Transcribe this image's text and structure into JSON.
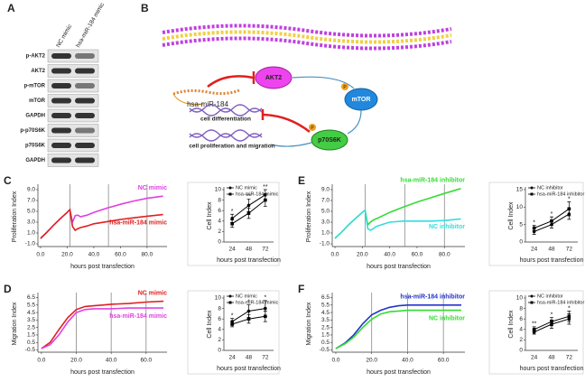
{
  "panel_a": {
    "label": "A",
    "columns": [
      "NC mimic",
      "hsa-miR-184 mimic"
    ],
    "rows": [
      "p-AKT2",
      "AKT2",
      "p-mTOR",
      "mTOR",
      "GAPDH",
      "p-p70S6K",
      "p70S6K",
      "GAPDH"
    ]
  },
  "panel_b": {
    "label": "B",
    "akt": "AKT2",
    "mirna": "hsa-miR-184",
    "mtor": "mTOR",
    "phospho": "P",
    "s6k": "p70S6K",
    "outcome_1": "cell differentiation",
    "outcome_2": "cell proliferation and migration"
  },
  "chart_data": [
    {
      "type": "line",
      "label": "C",
      "ylabel": "Proliferation Index",
      "xlabel": "hours post transfection",
      "x": [
        0,
        5,
        10,
        15,
        20,
        22,
        24,
        26,
        28,
        30,
        35,
        40,
        50,
        60,
        70,
        80,
        92
      ],
      "series": [
        {
          "name": "NC mimic",
          "color": "#e040e0",
          "values": [
            0,
            1.2,
            2.5,
            3.7,
            4.8,
            5.3,
            3.0,
            4.2,
            4.3,
            4.0,
            4.3,
            4.8,
            5.6,
            6.3,
            6.9,
            7.4,
            7.8
          ]
        },
        {
          "name": "hsa-miR-184 mimic",
          "color": "#e02020",
          "values": [
            0,
            1.2,
            2.5,
            3.7,
            4.8,
            5.3,
            2.2,
            1.5,
            1.8,
            2.0,
            2.3,
            2.7,
            3.1,
            3.5,
            3.8,
            4.1,
            4.4
          ]
        }
      ],
      "vlines": [
        22,
        51,
        80
      ],
      "xlim": [
        -2,
        95
      ],
      "ylim": [
        -1.5,
        9.5
      ],
      "xticks": [
        {
          "value": 0,
          "label": "0.0"
        },
        {
          "value": 20,
          "label": "20.0"
        },
        {
          "value": 40,
          "label": "40.0"
        },
        {
          "value": 60,
          "label": "60.0"
        },
        {
          "value": 80,
          "label": "80.0"
        }
      ],
      "yticks": [
        {
          "value": -1,
          "label": "-1.0"
        },
        {
          "value": 1,
          "label": "1.0"
        },
        {
          "value": 3,
          "label": "3.0"
        },
        {
          "value": 5,
          "label": "5.0"
        },
        {
          "value": 7,
          "label": "7.0"
        },
        {
          "value": 9,
          "label": "9.0"
        }
      ]
    },
    {
      "type": "errorbar",
      "ylabel": "Cell Index",
      "xlabel": "hours post transfection",
      "categories": [
        "24",
        "48",
        "72"
      ],
      "series": [
        {
          "name": "NC mimic",
          "color": "#000000",
          "values": [
            4.5,
            7,
            9
          ],
          "errors": [
            0.8,
            1.2,
            1
          ]
        },
        {
          "name": "hsa-miR-184 mimic",
          "color": "#000000",
          "values": [
            3.5,
            5.5,
            8
          ],
          "errors": [
            0.7,
            1,
            1.2
          ]
        }
      ],
      "significance": [
        "*",
        "**",
        "**"
      ],
      "ylim": [
        0,
        10
      ],
      "yticks": [
        0,
        2,
        4,
        6,
        8,
        10
      ]
    },
    {
      "type": "line",
      "label": "E",
      "ylabel": "Proliferation Index",
      "xlabel": "hours post transfection",
      "x": [
        0,
        5,
        10,
        15,
        20,
        22,
        24,
        26,
        28,
        30,
        35,
        40,
        50,
        60,
        70,
        80,
        92
      ],
      "series": [
        {
          "name": "hsa-miR-184 inhibitor",
          "color": "#33dd33",
          "values": [
            0,
            1.2,
            2.5,
            3.7,
            4.8,
            5.2,
            2.5,
            3.0,
            3.4,
            3.6,
            4.2,
            4.8,
            5.8,
            6.7,
            7.5,
            8.3,
            9.2
          ]
        },
        {
          "name": "NC inhibitor",
          "color": "#33dddd",
          "values": [
            0,
            1.2,
            2.5,
            3.7,
            4.8,
            5.2,
            1.8,
            1.5,
            1.8,
            2.2,
            2.6,
            3.0,
            3.2,
            3.2,
            3.2,
            3.3,
            3.6
          ]
        }
      ],
      "vlines": [
        22,
        51,
        80
      ],
      "xlim": [
        -2,
        95
      ],
      "ylim": [
        -1.5,
        9.5
      ],
      "xticks": [
        {
          "value": 0,
          "label": "0.0"
        },
        {
          "value": 20,
          "label": "20.0"
        },
        {
          "value": 40,
          "label": "40.0"
        },
        {
          "value": 60,
          "label": "60.0"
        },
        {
          "value": 80,
          "label": "80.0"
        }
      ],
      "yticks": [
        {
          "value": -1,
          "label": "-1.0"
        },
        {
          "value": 1,
          "label": "1.0"
        },
        {
          "value": 3,
          "label": "3.0"
        },
        {
          "value": 5,
          "label": "5.0"
        },
        {
          "value": 7,
          "label": "7.0"
        },
        {
          "value": 9,
          "label": "9.0"
        }
      ]
    },
    {
      "type": "errorbar",
      "ylabel": "Cell Index",
      "xlabel": "hours post transfection",
      "categories": [
        "24",
        "48",
        "72"
      ],
      "series": [
        {
          "name": "NC inhibitor",
          "color": "#000000",
          "values": [
            3,
            5,
            8
          ],
          "errors": [
            0.8,
            1,
            1.5
          ]
        },
        {
          "name": "hsa-miR-184 inhibitor",
          "color": "#000000",
          "values": [
            4,
            6,
            9.5
          ],
          "errors": [
            0.8,
            1.2,
            2
          ]
        }
      ],
      "significance": [
        "*",
        "*",
        "*"
      ],
      "ylim": [
        0,
        15
      ],
      "yticks": [
        0,
        5,
        10,
        15
      ]
    },
    {
      "type": "line",
      "label": "D",
      "ylabel": "Migration Index",
      "xlabel": "hours post transfection",
      "x": [
        0,
        5,
        10,
        15,
        20,
        25,
        30,
        35,
        40,
        50,
        60,
        70
      ],
      "series": [
        {
          "name": "NC mimic",
          "color": "#e02020",
          "values": [
            -0.3,
            0.5,
            2.2,
            3.8,
            4.9,
            5.3,
            5.4,
            5.5,
            5.6,
            5.7,
            5.9,
            6.0
          ]
        },
        {
          "name": "hsa-miR-184 mimic",
          "color": "#e040e0",
          "values": [
            -0.3,
            0.2,
            1.5,
            3.2,
            4.5,
            4.9,
            5.0,
            5.0,
            5.0,
            5.1,
            5.1,
            5.1
          ]
        }
      ],
      "vlines": [
        20,
        40,
        60
      ],
      "xlim": [
        -2,
        72
      ],
      "ylim": [
        -0.8,
        6.8
      ],
      "xticks": [
        {
          "value": 0,
          "label": "0.0"
        },
        {
          "value": 20,
          "label": "20.0"
        },
        {
          "value": 40,
          "label": "40.0"
        },
        {
          "value": 60,
          "label": "60.0"
        }
      ],
      "yticks": [
        {
          "value": -0.5,
          "label": "-0.5"
        },
        {
          "value": 0.5,
          "label": "0.5"
        },
        {
          "value": 1.5,
          "label": "1.5"
        },
        {
          "value": 2.5,
          "label": "2.5"
        },
        {
          "value": 3.5,
          "label": "3.5"
        },
        {
          "value": 4.5,
          "label": "4.5"
        },
        {
          "value": 5.5,
          "label": "5.5"
        },
        {
          "value": 6.5,
          "label": "6.5"
        }
      ]
    },
    {
      "type": "errorbar",
      "ylabel": "Cell Index",
      "xlabel": "hours post transfection",
      "categories": [
        "24",
        "48",
        "72"
      ],
      "series": [
        {
          "name": "NC mimic",
          "color": "#000000",
          "values": [
            5.5,
            7.5,
            8
          ],
          "errors": [
            0.6,
            1.2,
            1.5
          ]
        },
        {
          "name": "hsa-miR-184 mimic",
          "color": "#000000",
          "values": [
            5,
            6,
            6.5
          ],
          "errors": [
            0.5,
            0.8,
            1
          ]
        }
      ],
      "significance": [
        "*",
        "*",
        "*"
      ],
      "ylim": [
        0,
        10
      ],
      "yticks": [
        0,
        2,
        4,
        6,
        8,
        10
      ]
    },
    {
      "type": "line",
      "label": "F",
      "ylabel": "Migration Index",
      "xlabel": "hours post transfection",
      "x": [
        0,
        5,
        10,
        15,
        20,
        25,
        30,
        35,
        40,
        50,
        60,
        70
      ],
      "series": [
        {
          "name": "hsa-miR-184 inhibitor",
          "color": "#2233cc",
          "values": [
            -0.3,
            0.4,
            1.5,
            3.0,
            4.2,
            4.8,
            5.2,
            5.4,
            5.5,
            5.5,
            5.5,
            5.5
          ]
        },
        {
          "name": "NC inhibitor",
          "color": "#33dd33",
          "values": [
            -0.3,
            0.3,
            1.2,
            2.5,
            3.6,
            4.3,
            4.6,
            4.7,
            4.8,
            4.8,
            4.8,
            4.8
          ]
        }
      ],
      "vlines": [
        20,
        40,
        60
      ],
      "xlim": [
        -2,
        72
      ],
      "ylim": [
        -0.8,
        6.8
      ],
      "xticks": [
        {
          "value": 0,
          "label": "0.0"
        },
        {
          "value": 20,
          "label": "20.0"
        },
        {
          "value": 40,
          "label": "40.0"
        },
        {
          "value": 60,
          "label": "60.0"
        }
      ],
      "yticks": [
        {
          "value": -0.5,
          "label": "-0.5"
        },
        {
          "value": 0.5,
          "label": "0.5"
        },
        {
          "value": 1.5,
          "label": "1.5"
        },
        {
          "value": 2.5,
          "label": "2.5"
        },
        {
          "value": 3.5,
          "label": "3.5"
        },
        {
          "value": 4.5,
          "label": "4.5"
        },
        {
          "value": 5.5,
          "label": "5.5"
        },
        {
          "value": 6.5,
          "label": "6.5"
        }
      ]
    },
    {
      "type": "errorbar",
      "ylabel": "Cell Index",
      "xlabel": "hours post transfection",
      "categories": [
        "24",
        "48",
        "72"
      ],
      "series": [
        {
          "name": "NC inhibitor",
          "color": "#000000",
          "values": [
            3.5,
            5,
            6
          ],
          "errors": [
            0.4,
            0.8,
            1
          ]
        },
        {
          "name": "hsa-miR-184 inhibitor",
          "color": "#000000",
          "values": [
            4,
            5.5,
            6.5
          ],
          "errors": [
            0.5,
            0.8,
            1
          ]
        }
      ],
      "significance": [
        "**",
        "*",
        "*"
      ],
      "ylim": [
        0,
        10
      ],
      "yticks": [
        0,
        2,
        4,
        6,
        8,
        10
      ]
    }
  ]
}
